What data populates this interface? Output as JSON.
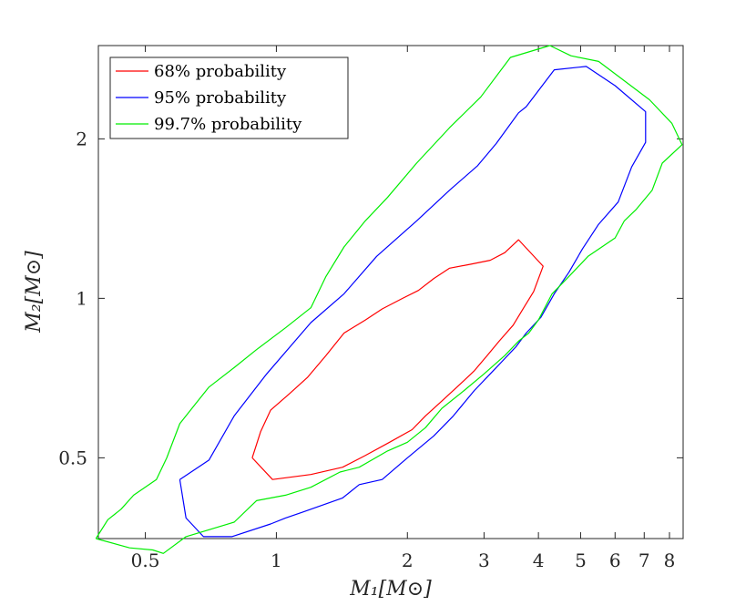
{
  "chart_data": {
    "type": "line",
    "title": "",
    "xlabel": "M₁[M⊙]",
    "ylabel": "M₂[M⊙]",
    "xscale": "log",
    "yscale": "log",
    "xlim": [
      0.39,
      8.6
    ],
    "ylim": [
      0.352,
      3.0
    ],
    "x_ticks": [
      0.5,
      1,
      2,
      3,
      4,
      5,
      6,
      7,
      8
    ],
    "x_tick_labels": [
      "0.5",
      "1",
      "2",
      "3",
      "4",
      "5",
      "6",
      "7",
      "8"
    ],
    "y_ticks": [
      0.5,
      1,
      2
    ],
    "y_tick_labels": [
      "0.5",
      "1",
      "2"
    ],
    "legend_position": "top-left",
    "series": [
      {
        "name": "68% probability",
        "color": "#ff0000",
        "points": [
          [
            0.88,
            0.5
          ],
          [
            0.92,
            0.56
          ],
          [
            0.97,
            0.615
          ],
          [
            1.07,
            0.66
          ],
          [
            1.18,
            0.71
          ],
          [
            1.3,
            0.78
          ],
          [
            1.43,
            0.86
          ],
          [
            1.6,
            0.91
          ],
          [
            1.75,
            0.955
          ],
          [
            1.95,
            1.0
          ],
          [
            2.12,
            1.035
          ],
          [
            2.3,
            1.09
          ],
          [
            2.5,
            1.14
          ],
          [
            2.8,
            1.16
          ],
          [
            3.1,
            1.18
          ],
          [
            3.35,
            1.22
          ],
          [
            3.6,
            1.29
          ],
          [
            4.1,
            1.15
          ],
          [
            3.9,
            1.03
          ],
          [
            3.7,
            0.96
          ],
          [
            3.5,
            0.89
          ],
          [
            3.25,
            0.83
          ],
          [
            3.05,
            0.78
          ],
          [
            2.85,
            0.73
          ],
          [
            2.65,
            0.69
          ],
          [
            2.4,
            0.64
          ],
          [
            2.2,
            0.6
          ],
          [
            2.05,
            0.565
          ],
          [
            1.82,
            0.535
          ],
          [
            1.6,
            0.505
          ],
          [
            1.42,
            0.48
          ],
          [
            1.2,
            0.465
          ],
          [
            0.98,
            0.455
          ],
          [
            0.88,
            0.5
          ]
        ]
      },
      {
        "name": "95% probability",
        "color": "#0000ff",
        "points": [
          [
            0.6,
            0.455
          ],
          [
            0.7,
            0.495
          ],
          [
            0.8,
            0.6
          ],
          [
            0.95,
            0.72
          ],
          [
            1.2,
            0.9
          ],
          [
            1.43,
            1.02
          ],
          [
            1.7,
            1.2
          ],
          [
            2.1,
            1.4
          ],
          [
            2.5,
            1.6
          ],
          [
            2.9,
            1.78
          ],
          [
            3.2,
            1.96
          ],
          [
            3.6,
            2.24
          ],
          [
            3.75,
            2.3
          ],
          [
            4.35,
            2.7
          ],
          [
            5.15,
            2.74
          ],
          [
            6.0,
            2.52
          ],
          [
            7.05,
            2.25
          ],
          [
            7.05,
            1.97
          ],
          [
            6.55,
            1.77
          ],
          [
            6.1,
            1.52
          ],
          [
            5.5,
            1.38
          ],
          [
            5.05,
            1.24
          ],
          [
            4.7,
            1.12
          ],
          [
            4.35,
            1.02
          ],
          [
            4.05,
            0.92
          ],
          [
            3.75,
            0.86
          ],
          [
            3.55,
            0.81
          ],
          [
            3.35,
            0.77
          ],
          [
            3.1,
            0.72
          ],
          [
            2.85,
            0.67
          ],
          [
            2.55,
            0.6
          ],
          [
            2.3,
            0.55
          ],
          [
            2.0,
            0.5
          ],
          [
            1.75,
            0.455
          ],
          [
            1.55,
            0.445
          ],
          [
            1.42,
            0.42
          ],
          [
            1.15,
            0.395
          ],
          [
            1.05,
            0.385
          ],
          [
            0.97,
            0.375
          ],
          [
            0.79,
            0.355
          ],
          [
            0.68,
            0.355
          ],
          [
            0.62,
            0.385
          ],
          [
            0.6,
            0.455
          ]
        ]
      },
      {
        "name": "99.7% probability",
        "color": "#00ee00",
        "points": [
          [
            0.385,
            0.352
          ],
          [
            0.41,
            0.382
          ],
          [
            0.44,
            0.4
          ],
          [
            0.47,
            0.425
          ],
          [
            0.53,
            0.455
          ],
          [
            0.56,
            0.5
          ],
          [
            0.6,
            0.58
          ],
          [
            0.65,
            0.63
          ],
          [
            0.7,
            0.68
          ],
          [
            0.8,
            0.74
          ],
          [
            0.9,
            0.8
          ],
          [
            1.05,
            0.88
          ],
          [
            1.2,
            0.96
          ],
          [
            1.3,
            1.1
          ],
          [
            1.43,
            1.25
          ],
          [
            1.6,
            1.4
          ],
          [
            1.8,
            1.55
          ],
          [
            2.1,
            1.8
          ],
          [
            2.5,
            2.1
          ],
          [
            2.95,
            2.4
          ],
          [
            3.45,
            2.85
          ],
          [
            4.25,
            3.0
          ],
          [
            4.75,
            2.87
          ],
          [
            5.5,
            2.8
          ],
          [
            6.2,
            2.6
          ],
          [
            7.2,
            2.37
          ],
          [
            8.1,
            2.14
          ],
          [
            8.55,
            1.95
          ],
          [
            7.7,
            1.8
          ],
          [
            7.3,
            1.6
          ],
          [
            6.7,
            1.47
          ],
          [
            6.3,
            1.4
          ],
          [
            6.0,
            1.3
          ],
          [
            5.2,
            1.2
          ],
          [
            4.8,
            1.12
          ],
          [
            4.5,
            1.06
          ],
          [
            4.3,
            1.02
          ],
          [
            4.0,
            0.91
          ],
          [
            3.8,
            0.86
          ],
          [
            3.6,
            0.83
          ],
          [
            3.35,
            0.78
          ],
          [
            3.0,
            0.72
          ],
          [
            2.7,
            0.67
          ],
          [
            2.4,
            0.62
          ],
          [
            2.2,
            0.57
          ],
          [
            2.0,
            0.535
          ],
          [
            1.8,
            0.515
          ],
          [
            1.55,
            0.48
          ],
          [
            1.4,
            0.47
          ],
          [
            1.2,
            0.44
          ],
          [
            1.05,
            0.425
          ],
          [
            0.9,
            0.415
          ],
          [
            0.8,
            0.378
          ],
          [
            0.62,
            0.355
          ],
          [
            0.55,
            0.33
          ],
          [
            0.52,
            0.335
          ],
          [
            0.46,
            0.338
          ],
          [
            0.385,
            0.352
          ]
        ]
      }
    ]
  }
}
